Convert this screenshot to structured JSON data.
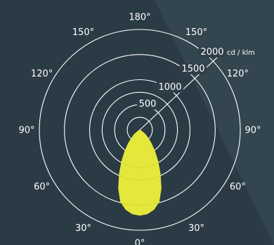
{
  "chart_data": {
    "type": "polar",
    "unit": "cd / klm",
    "radial_ticks": [
      {
        "value": 500,
        "label": "500"
      },
      {
        "value": 1000,
        "label": "1000"
      },
      {
        "value": 1500,
        "label": "1500"
      },
      {
        "value": 2000,
        "label": "2000"
      }
    ],
    "radial_max": 2000,
    "angle_labels": [
      {
        "angle": 0,
        "label": "0°"
      },
      {
        "angle": 30,
        "label": "30°"
      },
      {
        "angle": 60,
        "label": "60°"
      },
      {
        "angle": 90,
        "label": "90°"
      },
      {
        "angle": 120,
        "label": "120°"
      },
      {
        "angle": 150,
        "label": "150°"
      },
      {
        "angle": 180,
        "label": "180°"
      },
      {
        "angle": -30,
        "label": "30°"
      },
      {
        "angle": -60,
        "label": "60°"
      },
      {
        "angle": -90,
        "label": "90°"
      },
      {
        "angle": -120,
        "label": "120°"
      },
      {
        "angle": -150,
        "label": "150°"
      }
    ],
    "series": [
      {
        "color": "#e3e83a",
        "points": [
          {
            "angle": 0,
            "value": 1700
          },
          {
            "angle": 5,
            "value": 1680
          },
          {
            "angle": 10,
            "value": 1610
          },
          {
            "angle": 15,
            "value": 1480
          },
          {
            "angle": 20,
            "value": 1240
          },
          {
            "angle": 25,
            "value": 960
          },
          {
            "angle": 30,
            "value": 720
          },
          {
            "angle": 35,
            "value": 520
          },
          {
            "angle": 40,
            "value": 360
          },
          {
            "angle": 45,
            "value": 240
          },
          {
            "angle": 50,
            "value": 140
          },
          {
            "angle": 55,
            "value": 60
          },
          {
            "angle": 60,
            "value": 0
          }
        ]
      }
    ],
    "colors": {
      "background": "#2e3f4a",
      "grid": "#ffffff",
      "series": "#e3e83a"
    }
  }
}
